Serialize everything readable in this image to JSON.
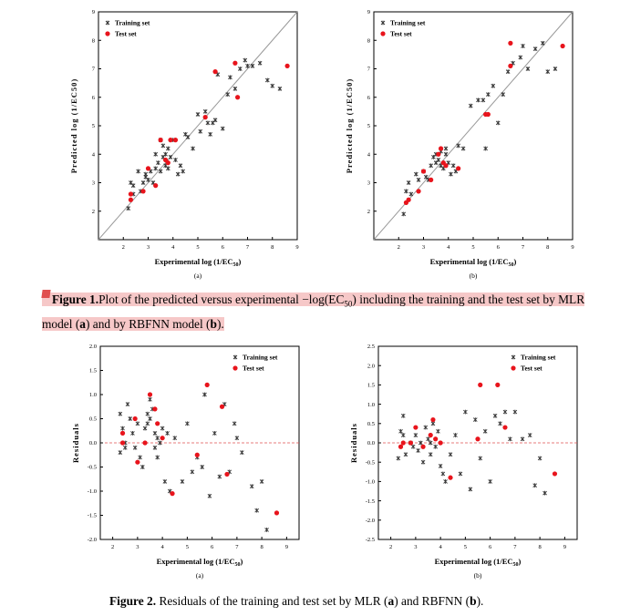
{
  "figure1_caption": {
    "label": "Figure 1.",
    "text_a": "Plot of the predicted versus experimental −log(EC",
    "sub": "50",
    "text_b": ") including the training and the test set by MLR model (",
    "a": "a",
    "text_c": ") and by RBFNN model (",
    "b": "b",
    "text_d": ")."
  },
  "figure2_caption": {
    "label": "Figure 2.",
    "text_a": "Residuals of the training and test set by MLR (",
    "a": "a",
    "text_b": ") and RBFNN (",
    "b": "b",
    "text_c": ")."
  },
  "colors": {
    "training": "#333333",
    "test": "#e8141c",
    "refline": "#999999",
    "zero": "#e05050"
  },
  "chart_data": [
    {
      "type": "scatter",
      "panel_label": "(a)",
      "xlabel": "Experimental log (1/EC50)",
      "ylabel": "Predicted log (1/EC50)",
      "xlim": [
        1,
        9
      ],
      "ylim": [
        1,
        9
      ],
      "xticks": [
        2,
        3,
        4,
        5,
        6,
        7,
        8,
        9
      ],
      "yticks": [
        2,
        3,
        4,
        5,
        6,
        7,
        8,
        9
      ],
      "reference_line": "y = x",
      "legend": {
        "placement": "top-left",
        "entries": [
          "Training set",
          "Test set"
        ]
      },
      "series": [
        {
          "name": "Training set",
          "marker": "x",
          "x": [
            2.2,
            2.4,
            2.3,
            2.4,
            2.6,
            2.7,
            2.8,
            2.9,
            3.0,
            3.1,
            3.2,
            3.3,
            3.4,
            3.5,
            3.6,
            3.6,
            3.7,
            3.7,
            3.8,
            3.9,
            4.0,
            4.1,
            4.2,
            4.3,
            4.4,
            4.6,
            4.8,
            5.0,
            5.1,
            5.3,
            5.4,
            5.5,
            5.6,
            5.8,
            6.0,
            6.2,
            6.3,
            6.5,
            6.7,
            6.9,
            7.0,
            7.2,
            7.5,
            7.8,
            8.0,
            8.3,
            3.5,
            3.8,
            3.3,
            2.9,
            4.5,
            5.7
          ],
          "y": [
            2.1,
            2.6,
            3.0,
            2.9,
            3.4,
            2.7,
            3.0,
            3.3,
            3.1,
            3.4,
            3.0,
            3.5,
            3.7,
            4.5,
            4.3,
            3.9,
            4.0,
            3.6,
            3.5,
            3.9,
            4.5,
            3.8,
            3.3,
            3.6,
            3.4,
            4.6,
            4.2,
            5.4,
            4.8,
            5.5,
            5.1,
            4.7,
            5.1,
            6.8,
            4.9,
            6.1,
            6.7,
            6.3,
            7.0,
            7.3,
            7.1,
            7.1,
            7.2,
            6.6,
            6.4,
            6.3,
            3.4,
            4.2,
            4.0,
            3.2,
            4.7,
            5.2
          ]
        },
        {
          "name": "Test set",
          "marker": "dot",
          "x": [
            2.3,
            2.3,
            2.8,
            3.0,
            3.3,
            3.5,
            3.7,
            3.8,
            3.9,
            4.1,
            5.3,
            5.7,
            6.5,
            6.6,
            8.6
          ],
          "y": [
            2.4,
            2.6,
            2.7,
            3.5,
            2.9,
            4.5,
            3.8,
            3.7,
            4.5,
            4.5,
            5.3,
            6.9,
            7.2,
            6.0,
            7.1
          ]
        }
      ]
    },
    {
      "type": "scatter",
      "panel_label": "(b)",
      "xlabel": "Experimental log (1/EC50)",
      "ylabel": "Predicted log (1/EC50)",
      "xlim": [
        1,
        9
      ],
      "ylim": [
        1,
        9
      ],
      "xticks": [
        2,
        3,
        4,
        5,
        6,
        7,
        8,
        9
      ],
      "yticks": [
        2,
        3,
        4,
        5,
        6,
        7,
        8,
        9
      ],
      "reference_line": "y = x",
      "legend": {
        "placement": "top-left",
        "entries": [
          "Training set",
          "Test set"
        ]
      },
      "series": [
        {
          "name": "Training set",
          "marker": "x",
          "x": [
            2.2,
            2.3,
            2.4,
            2.5,
            2.7,
            2.8,
            3.0,
            3.1,
            3.3,
            3.4,
            3.5,
            3.6,
            3.7,
            3.7,
            3.8,
            3.9,
            4.0,
            4.1,
            4.2,
            4.3,
            4.4,
            4.6,
            4.9,
            5.2,
            5.4,
            5.5,
            5.6,
            5.8,
            6.0,
            6.2,
            6.4,
            6.6,
            6.9,
            7.0,
            7.2,
            7.5,
            7.8,
            8.0,
            8.3,
            3.5,
            3.9,
            3.2
          ],
          "y": [
            1.9,
            2.7,
            3.0,
            2.6,
            3.3,
            3.1,
            3.4,
            3.2,
            3.6,
            3.9,
            4.0,
            3.8,
            4.1,
            3.6,
            3.5,
            4.2,
            3.7,
            3.3,
            3.6,
            3.4,
            4.3,
            4.2,
            5.7,
            5.9,
            5.9,
            4.2,
            6.1,
            6.4,
            5.1,
            6.1,
            6.9,
            7.2,
            7.4,
            7.8,
            7.0,
            7.7,
            7.9,
            6.9,
            7.0,
            3.7,
            4.0,
            3.1
          ]
        },
        {
          "name": "Test set",
          "marker": "dot",
          "x": [
            2.3,
            2.4,
            2.8,
            3.0,
            3.3,
            3.6,
            3.7,
            3.8,
            3.9,
            4.4,
            5.5,
            5.6,
            6.5,
            6.5,
            8.6
          ],
          "y": [
            2.3,
            2.4,
            2.7,
            3.4,
            3.1,
            4.0,
            4.2,
            3.7,
            3.6,
            3.5,
            5.4,
            5.4,
            7.9,
            7.1,
            7.8
          ]
        }
      ]
    },
    {
      "type": "scatter",
      "panel_label": "(a)",
      "xlabel": "Experimental log (1/EC50)",
      "ylabel": "Residuals",
      "xlim": [
        1.5,
        9.5
      ],
      "ylim": [
        -2.0,
        2.0
      ],
      "xticks": [
        2,
        3,
        4,
        5,
        6,
        7,
        8,
        9
      ],
      "yticks": [
        -2.0,
        -1.5,
        -1.0,
        -0.5,
        0.0,
        0.5,
        1.0,
        1.5,
        2.0
      ],
      "zero_line": "dashed",
      "legend": {
        "placement": "top-right",
        "entries": [
          "Training set",
          "Test set"
        ]
      },
      "series": [
        {
          "name": "Training set",
          "marker": "x",
          "x": [
            2.3,
            2.3,
            2.4,
            2.5,
            2.6,
            2.7,
            2.8,
            2.9,
            3.0,
            3.1,
            3.2,
            3.3,
            3.4,
            3.5,
            3.5,
            3.6,
            3.7,
            3.7,
            3.8,
            3.9,
            4.0,
            4.1,
            4.3,
            4.5,
            4.8,
            5.0,
            5.2,
            5.4,
            5.6,
            5.7,
            5.9,
            6.1,
            6.3,
            6.5,
            6.7,
            6.9,
            7.0,
            7.2,
            7.6,
            7.8,
            8.0,
            8.2,
            3.4,
            3.8,
            2.5,
            4.2
          ],
          "y": [
            0.6,
            -0.2,
            0.3,
            0.0,
            0.8,
            0.5,
            0.2,
            -0.1,
            0.4,
            -0.3,
            -0.5,
            0.3,
            0.6,
            0.9,
            0.5,
            0.7,
            0.2,
            -0.1,
            0.1,
            0.0,
            0.3,
            -0.8,
            -1.0,
            0.1,
            -0.8,
            0.4,
            -0.6,
            -0.3,
            -0.5,
            1.0,
            -1.1,
            0.2,
            -0.7,
            0.8,
            -0.6,
            0.4,
            0.1,
            -0.2,
            -0.9,
            -1.4,
            -0.8,
            -1.8,
            0.4,
            -0.3,
            -0.1,
            0.2
          ]
        },
        {
          "name": "Test set",
          "marker": "dot",
          "x": [
            2.4,
            2.4,
            2.9,
            3.0,
            3.3,
            3.5,
            3.7,
            3.8,
            4.0,
            4.4,
            5.4,
            5.8,
            6.4,
            6.6,
            8.6
          ],
          "y": [
            0.2,
            0.0,
            0.5,
            -0.4,
            0.0,
            1.0,
            0.7,
            0.4,
            0.1,
            -1.05,
            -0.25,
            1.2,
            0.75,
            -0.65,
            -1.45
          ]
        }
      ]
    },
    {
      "type": "scatter",
      "panel_label": "(b)",
      "xlabel": "Experimental log (1/EC50)",
      "ylabel": "Residuals",
      "xlim": [
        1.5,
        9.5
      ],
      "ylim": [
        -2.5,
        2.5
      ],
      "xticks": [
        2,
        3,
        4,
        5,
        6,
        7,
        8,
        9
      ],
      "yticks": [
        -2.5,
        -2.0,
        -1.5,
        -1.0,
        -0.5,
        0.0,
        0.5,
        1.0,
        1.5,
        2.0,
        2.5
      ],
      "zero_line": "dashed",
      "legend": {
        "placement": "top-right",
        "entries": [
          "Training set",
          "Test set"
        ]
      },
      "series": [
        {
          "name": "Training set",
          "marker": "x",
          "x": [
            2.3,
            2.4,
            2.5,
            2.6,
            2.8,
            2.9,
            3.0,
            3.1,
            3.2,
            3.3,
            3.4,
            3.5,
            3.6,
            3.7,
            3.8,
            3.9,
            4.0,
            4.1,
            4.2,
            4.4,
            4.6,
            4.8,
            5.0,
            5.2,
            5.4,
            5.6,
            5.8,
            6.0,
            6.2,
            6.4,
            6.6,
            6.8,
            7.0,
            7.3,
            7.6,
            7.8,
            8.0,
            8.2,
            2.5,
            3.6
          ],
          "y": [
            -0.4,
            0.3,
            0.7,
            -0.3,
            0.0,
            -0.1,
            0.2,
            -0.2,
            0.0,
            -0.5,
            0.4,
            0.1,
            -0.3,
            0.5,
            -0.1,
            0.3,
            -0.6,
            -0.8,
            -1.0,
            -0.3,
            0.2,
            -0.8,
            0.8,
            -1.2,
            0.6,
            -0.4,
            0.3,
            -1.0,
            0.7,
            0.5,
            0.8,
            0.1,
            0.8,
            0.1,
            0.2,
            -1.1,
            -0.4,
            -1.3,
            0.2,
            0.0
          ]
        },
        {
          "name": "Test set",
          "marker": "dot",
          "x": [
            2.4,
            2.5,
            2.8,
            3.0,
            3.3,
            3.6,
            3.7,
            3.8,
            4.0,
            4.4,
            5.5,
            5.6,
            6.3,
            6.6,
            8.6
          ],
          "y": [
            -0.1,
            0.0,
            0.0,
            0.4,
            -0.1,
            0.2,
            0.6,
            0.1,
            0.0,
            -0.9,
            0.1,
            1.5,
            1.5,
            0.4,
            -0.8
          ]
        }
      ]
    }
  ]
}
